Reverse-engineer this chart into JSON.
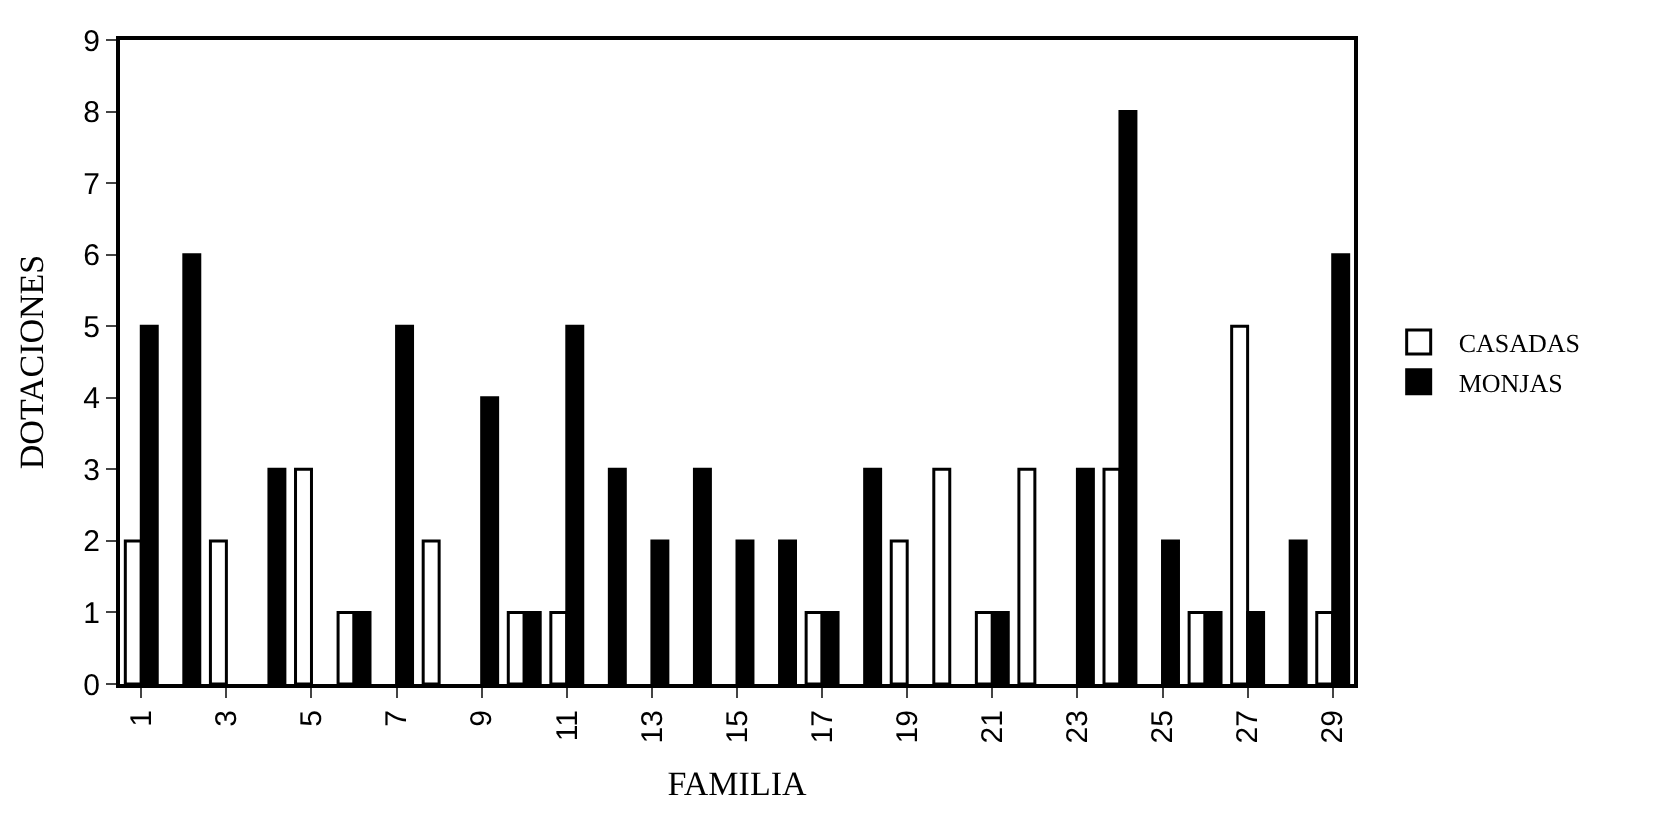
{
  "chart_data": {
    "type": "bar",
    "xlabel": "FAMILIA",
    "ylabel": "DOTACIONES",
    "categories": [
      "1",
      null,
      "3",
      null,
      "5",
      null,
      "7",
      null,
      "9",
      null,
      "11",
      null,
      "13",
      null,
      "15",
      null,
      "17",
      null,
      "19",
      null,
      "21",
      null,
      "23",
      null,
      "25",
      null,
      "27",
      null,
      "29"
    ],
    "series": [
      {
        "name": "CASADAS",
        "color": "#ffffff",
        "values": [
          2,
          0,
          2,
          0,
          3,
          1,
          0,
          2,
          0,
          1,
          1,
          0,
          0,
          0,
          0,
          0,
          1,
          0,
          2,
          3,
          1,
          3,
          0,
          3,
          0,
          1,
          5,
          0,
          1
        ]
      },
      {
        "name": "MONJAS",
        "color": "#000000",
        "values": [
          5,
          6,
          0,
          3,
          0,
          1,
          5,
          0,
          4,
          1,
          5,
          3,
          2,
          3,
          2,
          2,
          1,
          3,
          0,
          0,
          1,
          0,
          3,
          8,
          2,
          1,
          1,
          2,
          6
        ]
      }
    ],
    "ylim": [
      0,
      9
    ],
    "yticks": [
      0,
      1,
      2,
      3,
      4,
      5,
      6,
      7,
      8,
      9
    ],
    "grid": false,
    "legend": "right"
  }
}
